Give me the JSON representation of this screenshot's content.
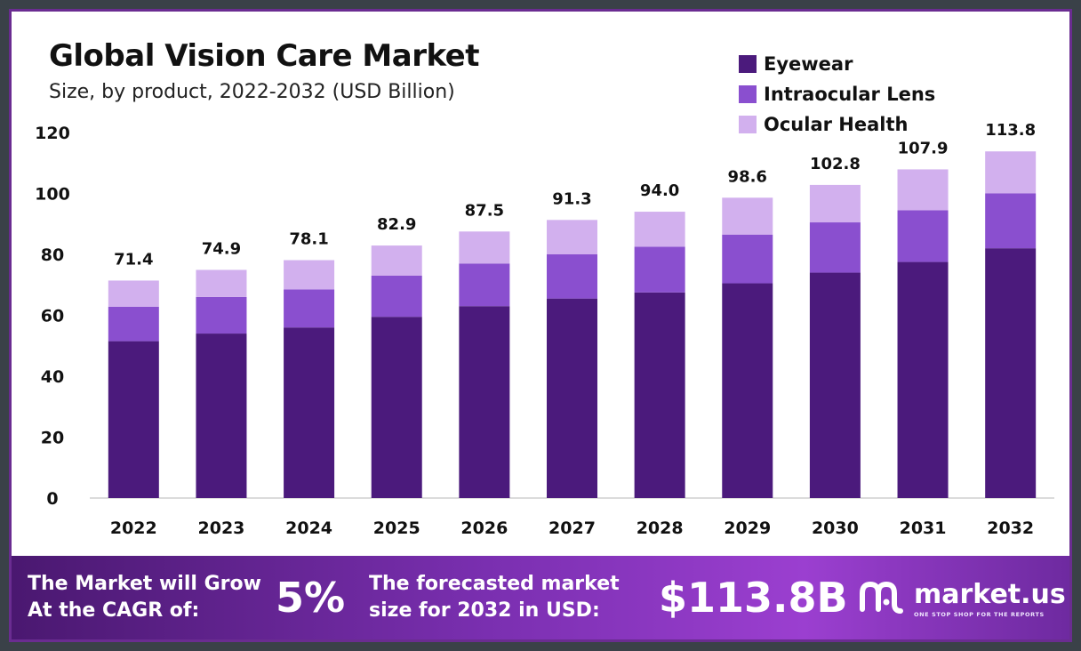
{
  "chart_data": {
    "type": "bar",
    "stacked": true,
    "title": "Global Vision Care Market",
    "subtitle": "Size, by product, 2022-2032 (USD Billion)",
    "xlabel": "",
    "ylabel": "",
    "ylim": [
      0,
      120
    ],
    "yticks": [
      "0",
      "20",
      "40",
      "60",
      "80",
      "100",
      "120"
    ],
    "categories": [
      "2022",
      "2023",
      "2024",
      "2025",
      "2026",
      "2027",
      "2028",
      "2029",
      "2030",
      "2031",
      "2032"
    ],
    "series": [
      {
        "name": "Eyewear",
        "color": "#4b1a7c",
        "values": [
          51.5,
          54.0,
          56.0,
          59.5,
          63.0,
          65.5,
          67.5,
          70.5,
          74.0,
          77.5,
          82.0
        ]
      },
      {
        "name": "Intraocular Lens",
        "color": "#8a4fcf",
        "values": [
          11.3,
          12.0,
          12.5,
          13.5,
          14.0,
          14.5,
          15.0,
          16.0,
          16.5,
          17.0,
          18.0
        ]
      },
      {
        "name": "Ocular Health",
        "color": "#d2b0ee",
        "values": [
          8.6,
          8.9,
          9.6,
          9.9,
          10.5,
          11.3,
          11.5,
          12.1,
          12.3,
          13.4,
          13.8
        ]
      }
    ],
    "totals": [
      "71.4",
      "74.9",
      "78.1",
      "82.9",
      "87.5",
      "91.3",
      "94.0",
      "98.6",
      "102.8",
      "107.9",
      "113.8"
    ],
    "total_values": [
      71.4,
      74.9,
      78.1,
      82.9,
      87.5,
      91.3,
      94.0,
      98.6,
      102.8,
      107.9,
      113.8
    ],
    "legend_position": "top-right",
    "grid": false
  },
  "footer": {
    "cagr_text_1": "The Market will Grow",
    "cagr_text_2": "At the CAGR of:",
    "cagr_value": "5%",
    "forecast_text_1": "The forecasted market",
    "forecast_text_2": "size for 2032 in USD:",
    "forecast_value": "$113.8B",
    "logo_name": "market.us",
    "logo_tagline": "ONE STOP SHOP FOR THE REPORTS"
  }
}
